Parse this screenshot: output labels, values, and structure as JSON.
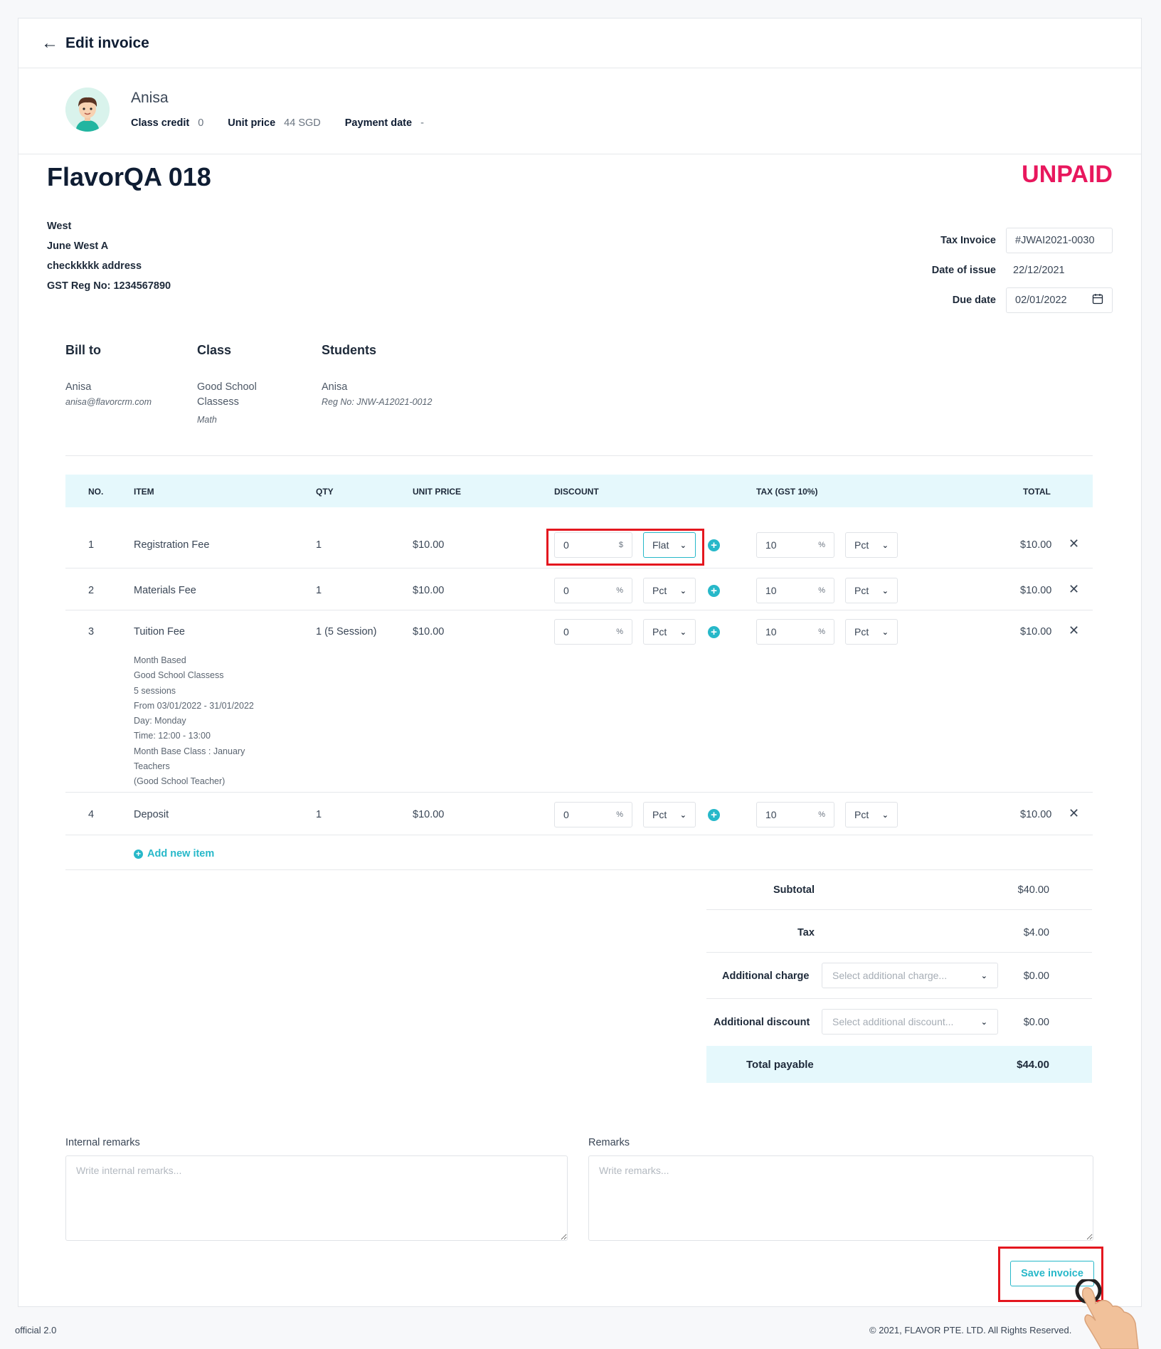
{
  "header": {
    "back_icon": "arrow-left-icon",
    "title": "Edit invoice"
  },
  "student": {
    "name": "Anisa",
    "class_credit_label": "Class credit",
    "class_credit_value": "0",
    "unit_price_label": "Unit price",
    "unit_price_value": "44 SGD",
    "payment_date_label": "Payment date",
    "payment_date_value": "-"
  },
  "invoice": {
    "title": "FlavorQA 018",
    "status": "UNPAID",
    "address": [
      "West",
      "June West A",
      "checkkkkk address",
      "GST Reg No: 1234567890"
    ],
    "tax_invoice_label": "Tax Invoice",
    "tax_invoice_value": "#JWAI2021-0030",
    "date_issue_label": "Date of issue",
    "date_issue_value": "22/12/2021",
    "due_date_label": "Due date",
    "due_date_value": "02/01/2022"
  },
  "billing": {
    "bill_to_label": "Bill to",
    "bill_to_name": "Anisa",
    "bill_to_email": "anisa@flavorcrm.com",
    "class_label": "Class",
    "class_name_1": "Good School",
    "class_name_2": "Classess",
    "class_subject": "Math",
    "students_label": "Students",
    "student_name": "Anisa",
    "student_reg": "Reg No: JNW-A12021-0012"
  },
  "table": {
    "headers": {
      "no": "NO.",
      "item": "ITEM",
      "qty": "QTY",
      "unit_price": "UNIT PRICE",
      "discount": "DISCOUNT",
      "tax": "TAX (GST 10%)",
      "total": "TOTAL"
    },
    "rows": [
      {
        "no": "1",
        "item": "Registration Fee",
        "qty": "1",
        "unit_price": "$10.00",
        "discount": "0",
        "discount_unit": "$",
        "discount_type": "Flat",
        "tax": "10",
        "tax_unit": "%",
        "tax_type": "Pct",
        "total": "$10.00"
      },
      {
        "no": "2",
        "item": "Materials Fee",
        "qty": "1",
        "unit_price": "$10.00",
        "discount": "0",
        "discount_unit": "%",
        "discount_type": "Pct",
        "tax": "10",
        "tax_unit": "%",
        "tax_type": "Pct",
        "total": "$10.00"
      },
      {
        "no": "3",
        "item": "Tuition Fee",
        "qty": "1 (5 Session)",
        "unit_price": "$10.00",
        "discount": "0",
        "discount_unit": "%",
        "discount_type": "Pct",
        "tax": "10",
        "tax_unit": "%",
        "tax_type": "Pct",
        "total": "$10.00",
        "details": [
          "Month Based",
          "Good School Classess",
          "5 sessions",
          "From 03/01/2022 - 31/01/2022",
          "Day: Monday",
          "Time: 12:00 - 13:00",
          "Month Base Class : January",
          "Teachers",
          "(Good School Teacher)"
        ]
      },
      {
        "no": "4",
        "item": "Deposit",
        "qty": "1",
        "unit_price": "$10.00",
        "discount": "0",
        "discount_unit": "%",
        "discount_type": "Pct",
        "tax": "10",
        "tax_unit": "%",
        "tax_type": "Pct",
        "total": "$10.00"
      }
    ],
    "add_new_item": "Add new item"
  },
  "summary": {
    "subtotal_label": "Subtotal",
    "subtotal_value": "$40.00",
    "tax_label": "Tax",
    "tax_value": "$4.00",
    "add_charge_label": "Additional charge",
    "add_charge_placeholder": "Select additional charge...",
    "add_charge_value": "$0.00",
    "add_discount_label": "Additional discount",
    "add_discount_placeholder": "Select additional discount...",
    "add_discount_value": "$0.00",
    "total_label": "Total payable",
    "total_value": "$44.00"
  },
  "remarks": {
    "internal_label": "Internal remarks",
    "internal_placeholder": "Write internal remarks...",
    "remarks_label": "Remarks",
    "remarks_placeholder": "Write remarks..."
  },
  "actions": {
    "save_label": "Save invoice"
  },
  "footer": {
    "version": "official 2.0",
    "copyright": "© 2021, FLAVOR PTE. LTD. All Rights Reserved."
  },
  "colors": {
    "accent": "#27b8c9",
    "status_unpaid": "#e8175d",
    "highlight": "#e4171f",
    "table_header_bg": "#e5f8fc"
  }
}
